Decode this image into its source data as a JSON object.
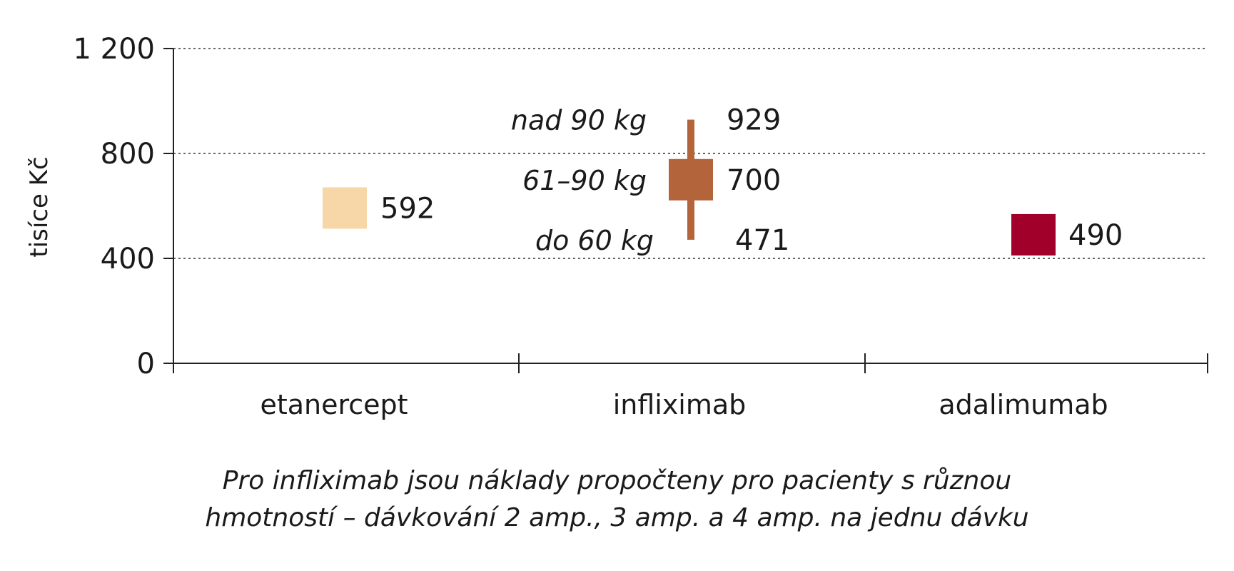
{
  "chart_data": {
    "type": "bar",
    "ylabel": "tisíce Kč",
    "ylim": [
      0,
      1200
    ],
    "yticks": [
      0,
      400,
      800,
      1200
    ],
    "ytick_labels": [
      "0",
      "400",
      "800",
      "1 200"
    ],
    "grid": true,
    "categories": [
      "etanercept",
      "infliximab",
      "adalimumab"
    ],
    "values": [
      592,
      700,
      490
    ],
    "value_labels": [
      "592",
      "700",
      "490"
    ],
    "colors": [
      "#f7d6a8",
      "#b4643a",
      "#a0002a"
    ],
    "infliximab_range": {
      "low": 471,
      "mid": 700,
      "high": 929,
      "low_label": "do 60 kg",
      "mid_label": "61–90 kg",
      "high_label": "nad 90 kg",
      "low_value_label": "471",
      "high_value_label": "929"
    }
  },
  "note": {
    "line1": "Pro infliximab jsou náklady propočteny pro pacienty s různou",
    "line2": "hmotností – dávkování 2 amp., 3 amp. a 4 amp. na jednu dávku"
  }
}
